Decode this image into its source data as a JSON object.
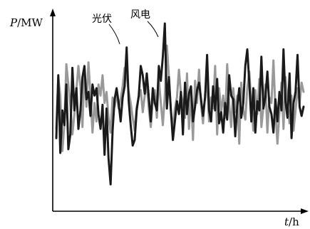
{
  "chart_data": {
    "type": "line",
    "ylabel": "P/MW",
    "xlabel": "t/h",
    "ylim": [
      0,
      100
    ],
    "grid": false,
    "legend": "none",
    "series": [
      {
        "name": "光伏",
        "color": "#1a1a1a",
        "values": [
          33,
          67,
          25,
          48,
          40,
          62,
          27,
          35,
          71,
          48,
          60,
          38,
          48,
          66,
          72,
          54,
          58,
          45,
          62,
          56,
          60,
          46,
          38,
          51,
          24,
          49,
          22,
          8,
          37,
          54,
          60,
          52,
          42,
          55,
          61,
          82,
          53,
          40,
          29,
          32,
          48,
          56,
          72,
          67,
          57,
          68,
          55,
          42,
          60,
          52,
          48,
          72,
          64,
          77,
          95,
          49,
          66,
          48,
          32,
          42,
          53,
          46,
          58,
          35,
          63,
          46,
          57,
          61,
          42,
          50,
          59,
          63,
          54,
          45,
          55,
          78,
          48,
          42,
          61,
          48,
          65,
          41,
          47,
          36,
          52,
          43,
          67,
          56,
          54,
          34,
          50,
          60,
          44,
          52,
          72,
          81,
          63,
          42,
          60,
          36,
          53,
          48,
          77,
          49,
          55,
          69,
          50,
          46,
          36,
          54,
          42,
          58,
          48,
          81,
          53,
          44,
          68,
          33,
          52,
          58,
          78,
          50,
          45,
          50
        ]
      },
      {
        "name": "风电",
        "color": "#999999",
        "values": [
          38,
          66,
          56,
          26,
          40,
          73,
          62,
          51,
          35,
          46,
          59,
          72,
          61,
          39,
          71,
          50,
          74,
          56,
          36,
          52,
          42,
          62,
          56,
          67,
          52,
          58,
          44,
          36,
          55,
          50,
          57,
          49,
          54,
          61,
          71,
          67,
          58,
          52,
          44,
          37,
          50,
          55,
          59,
          47,
          56,
          62,
          49,
          39,
          54,
          59,
          44,
          65,
          52,
          40,
          56,
          83,
          66,
          48,
          38,
          49,
          55,
          70,
          57,
          52,
          44,
          68,
          38,
          57,
          32,
          64,
          52,
          70,
          51,
          41,
          57,
          63,
          42,
          55,
          49,
          72,
          35,
          60,
          47,
          56,
          44,
          73,
          51,
          39,
          60,
          47,
          56,
          30,
          63,
          48,
          43,
          60,
          69,
          51,
          37,
          59,
          46,
          65,
          39,
          50,
          62,
          36,
          55,
          52,
          75,
          48,
          30,
          47,
          63,
          38,
          66,
          52,
          41,
          56,
          37,
          48,
          60,
          52,
          63,
          58
        ]
      }
    ]
  },
  "labels": {
    "ylabel_italic": "P",
    "ylabel_unit": "/MW",
    "xlabel_italic": "t",
    "xlabel_unit": "/h"
  }
}
